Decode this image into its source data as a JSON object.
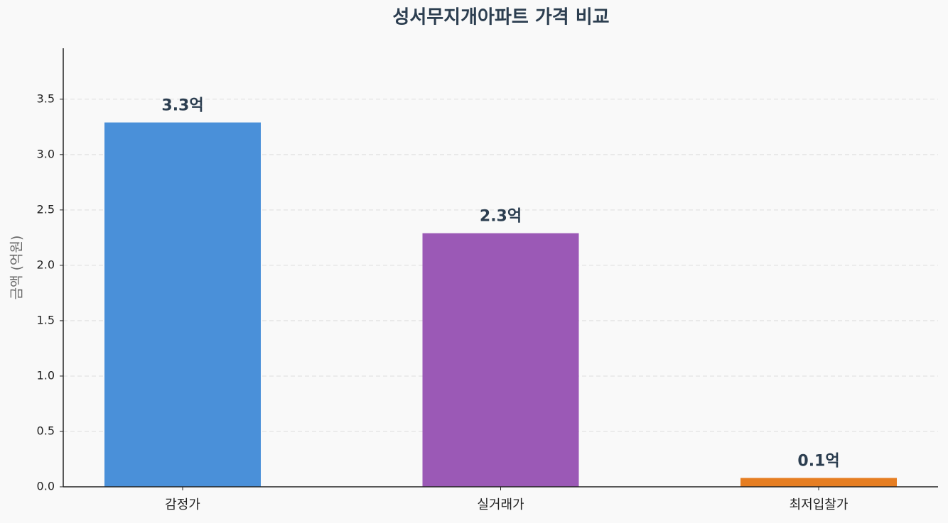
{
  "chart_data": {
    "type": "bar",
    "title": "성서무지개아파트 가격 비교",
    "y_label": "금액 (억원)",
    "categories": [
      "감정가",
      "실거래가",
      "최저입찰가"
    ],
    "values": [
      3.29,
      2.29,
      0.08
    ],
    "value_labels": [
      "3.3억",
      "2.3억",
      "0.1억"
    ],
    "colors": [
      "#4a90d9",
      "#9b59b6",
      "#e67e22"
    ],
    "ylim": [
      0,
      3.96
    ],
    "yticks": [
      {
        "value": 0,
        "label": "0.0"
      },
      0.5,
      {
        "value": 1,
        "label": "1.0"
      },
      1.5,
      {
        "value": 2,
        "label": "2.0"
      },
      2.5,
      {
        "value": 3,
        "label": "3.0"
      },
      3.5
    ],
    "grid": true
  }
}
